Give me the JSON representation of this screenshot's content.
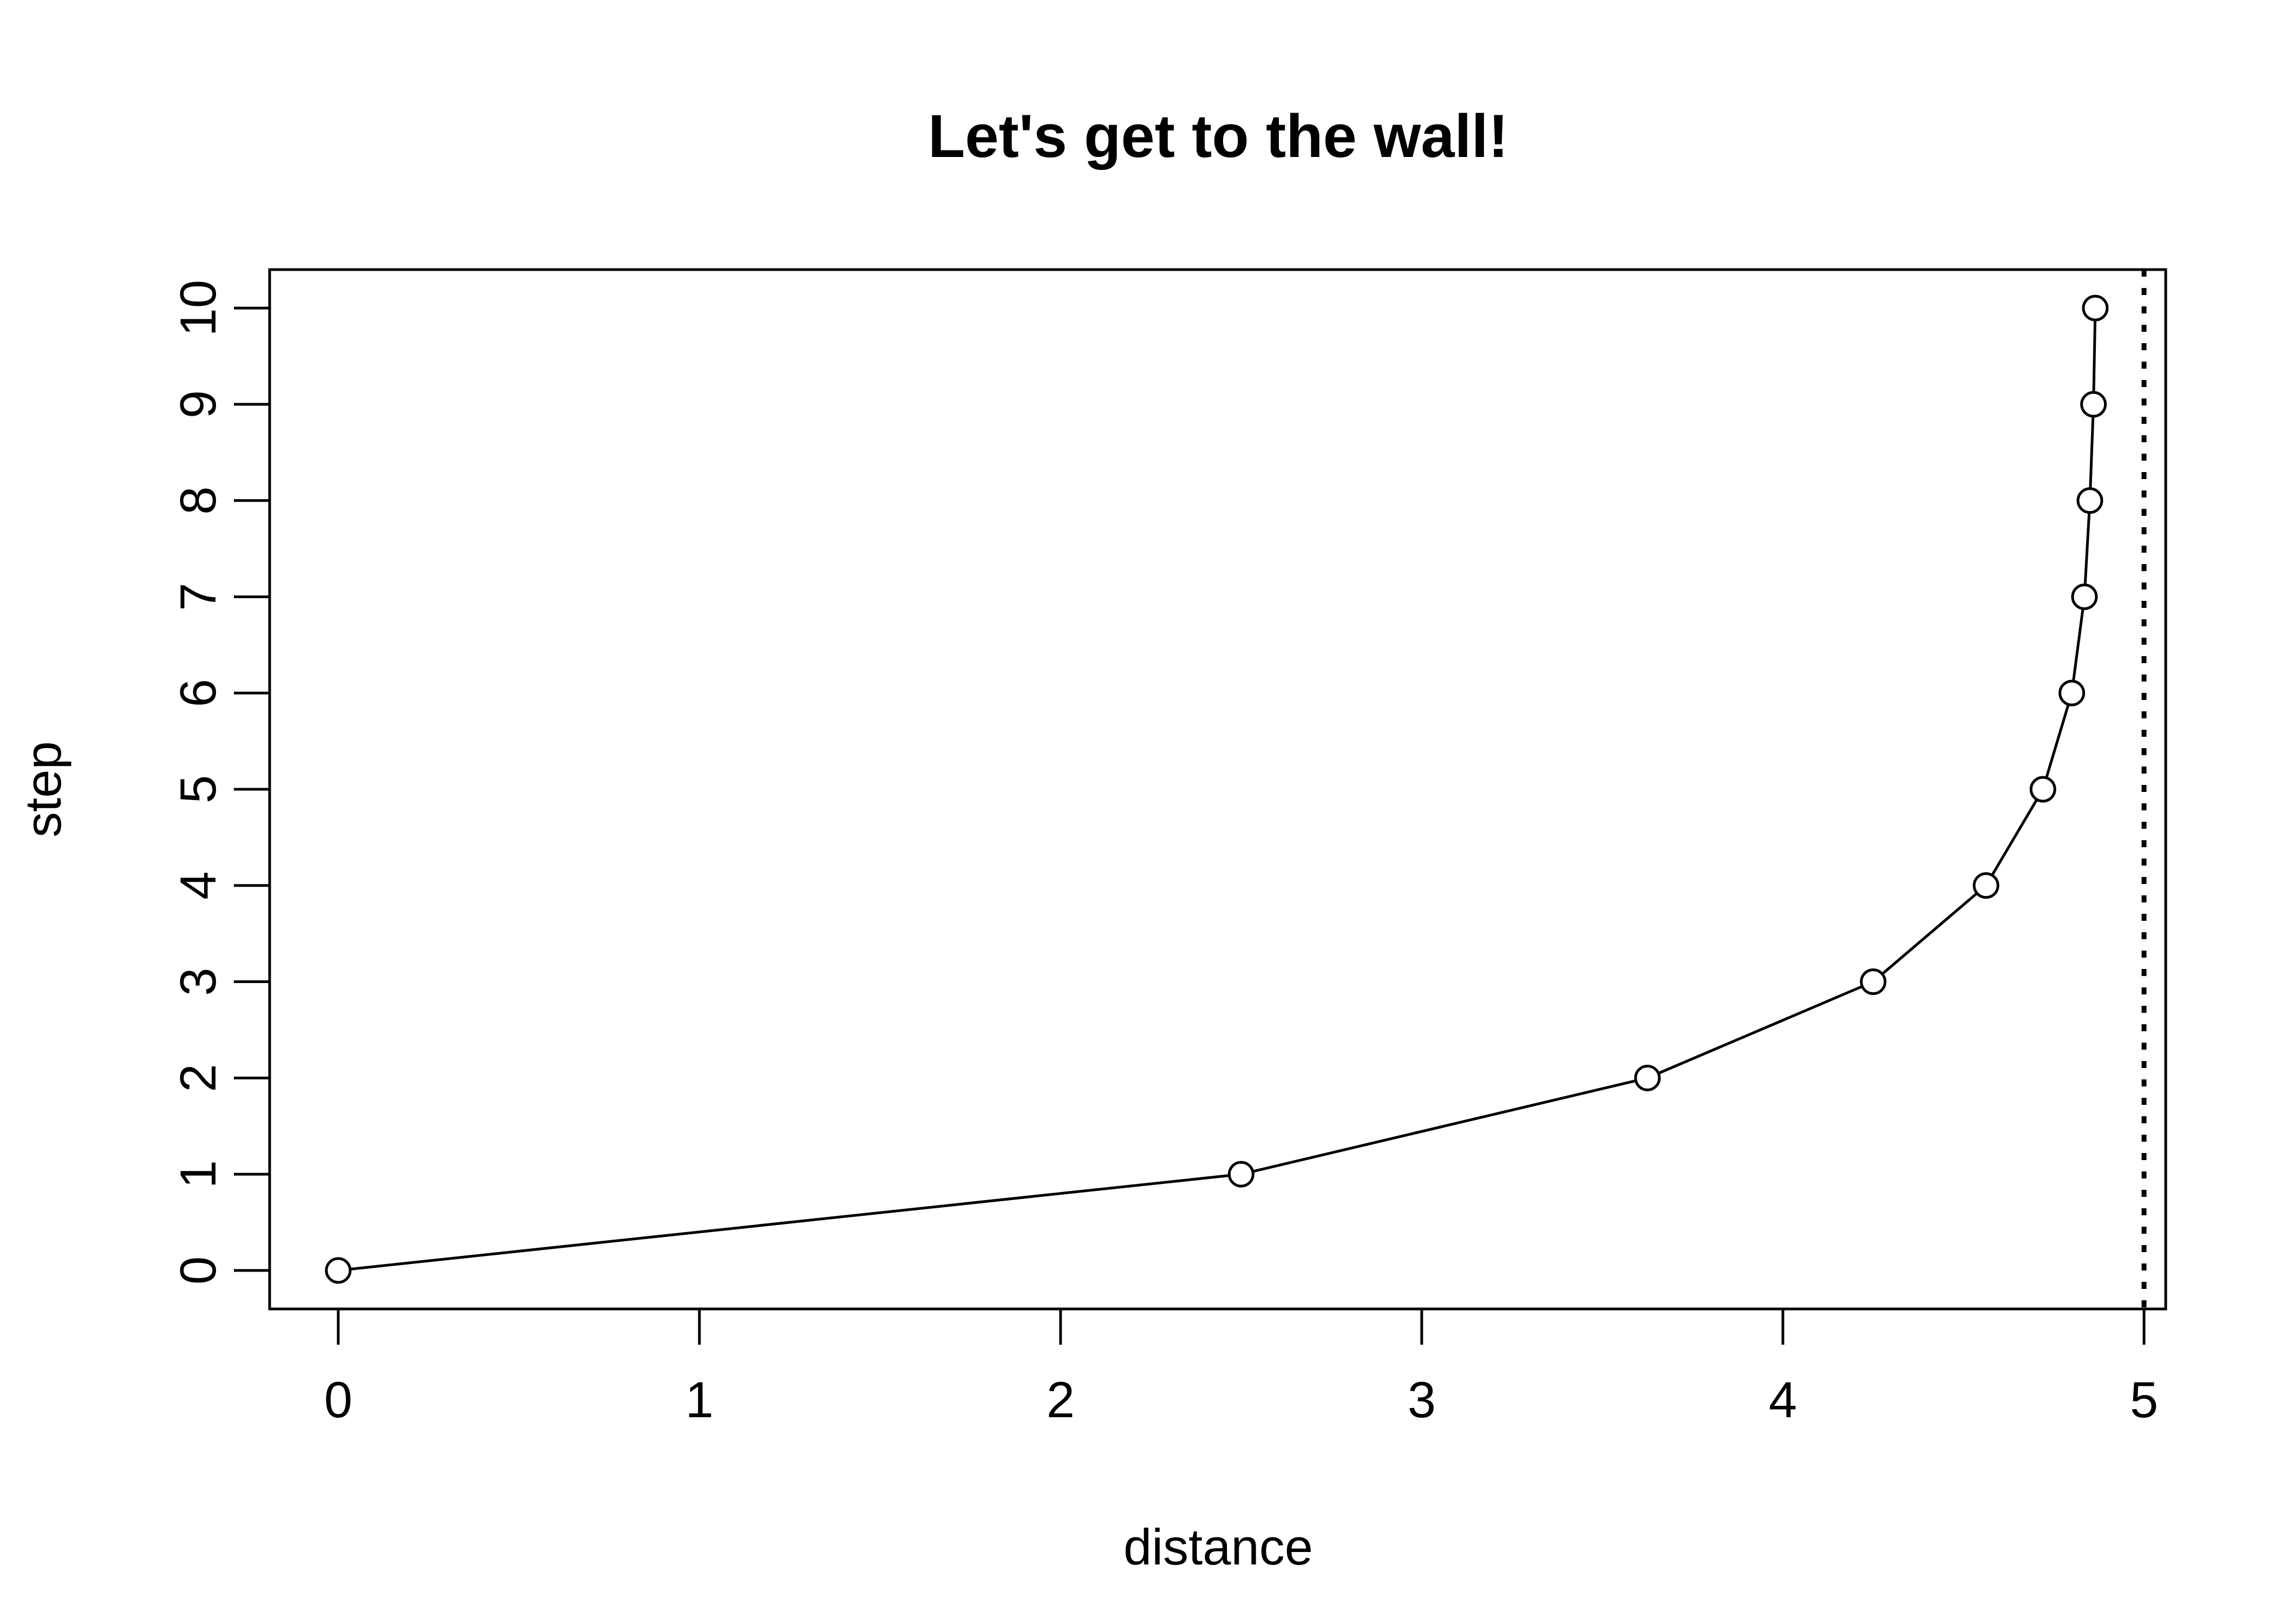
{
  "chart_data": {
    "type": "line",
    "title": "Let's get to the wall!",
    "xlabel": "distance",
    "ylabel": "step",
    "xlim": [
      -0.19,
      5.06
    ],
    "ylim": [
      -0.4,
      10.4
    ],
    "x_ticks": [
      0,
      1,
      2,
      3,
      4,
      5
    ],
    "y_ticks": [
      0,
      1,
      2,
      3,
      4,
      5,
      6,
      7,
      8,
      9,
      10
    ],
    "grid": false,
    "legend": "none",
    "series": [
      {
        "x": [
          0,
          2.5,
          3.625,
          4.25,
          4.5625,
          4.72,
          4.8,
          4.835,
          4.85,
          4.86,
          4.865
        ],
        "y": [
          0,
          1,
          2,
          3,
          4,
          5,
          6,
          7,
          8,
          9,
          10
        ],
        "marker": "open-circle",
        "color": "#000000"
      }
    ],
    "reference_line": {
      "x": 5,
      "style": "dotted",
      "color": "#000000"
    }
  }
}
